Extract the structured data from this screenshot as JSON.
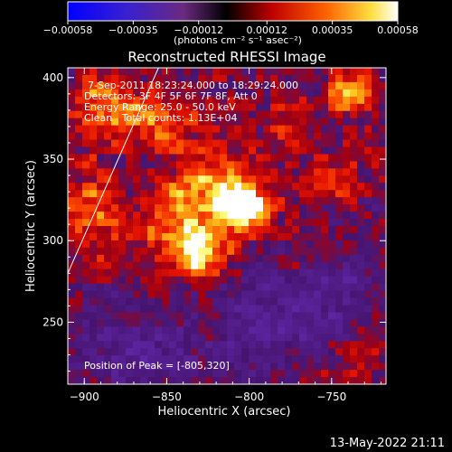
{
  "chart_data": {
    "type": "heatmap",
    "title": "Reconstructed RHESSI Image",
    "xlabel": "Heliocentric X (arcsec)",
    "ylabel": "Heliocentric Y (arcsec)",
    "xlim": [
      -910,
      -717
    ],
    "ylim": [
      212,
      406
    ],
    "x_ticks": [
      -900,
      -850,
      -800,
      -750
    ],
    "y_ticks": [
      250,
      300,
      350,
      400
    ],
    "colorbar": {
      "ticks": [
        "-0.00058",
        "-0.00035",
        "-0.00012",
        "0.00012",
        "0.00035",
        "0.00058"
      ],
      "unit_label": "(photons cm⁻² s⁻¹ asec⁻²)",
      "min": -0.00058,
      "max": 0.00058
    },
    "annotations": {
      "time_range": "7-Sep-2011 18:23:24.000 to 18:29:24.000",
      "detectors": "Detectors: 3F 4F 5F 6F 7F 8F, Att 0",
      "energy": "Energy Range: 25.0 - 50.0 keV",
      "clean": "Clean   Total counts: 1.13E+04",
      "peak": "Position of Peak = [-805,320]"
    },
    "sources": [
      {
        "x": -803,
        "y": 322,
        "sx": 10,
        "sy": 10,
        "amp": 1.0
      },
      {
        "x": -822,
        "y": 330,
        "sx": 18,
        "sy": 16,
        "amp": 0.55
      },
      {
        "x": -830,
        "y": 291,
        "sx": 11,
        "sy": 10,
        "amp": 0.75
      },
      {
        "x": -843,
        "y": 307,
        "sx": 22,
        "sy": 20,
        "amp": 0.45
      },
      {
        "x": -738,
        "y": 390,
        "sx": 9,
        "sy": 9,
        "amp": 0.75
      },
      {
        "x": -893,
        "y": 386,
        "sx": 15,
        "sy": 13,
        "amp": 0.5
      },
      {
        "x": -860,
        "y": 372,
        "sx": 24,
        "sy": 13,
        "amp": 0.45
      },
      {
        "x": -895,
        "y": 318,
        "sx": 12,
        "sy": 20,
        "amp": 0.45
      },
      {
        "x": -778,
        "y": 370,
        "sx": 10,
        "sy": 9,
        "amp": 0.4
      },
      {
        "x": -750,
        "y": 335,
        "sx": 14,
        "sy": 10,
        "amp": 0.3
      },
      {
        "x": -760,
        "y": 292,
        "sx": 12,
        "sy": 9,
        "amp": 0.28
      },
      {
        "x": -790,
        "y": 250,
        "sx": 22,
        "sy": 20,
        "amp": -0.45
      },
      {
        "x": -750,
        "y": 270,
        "sx": 20,
        "sy": 22,
        "amp": -0.35
      },
      {
        "x": -880,
        "y": 240,
        "sx": 24,
        "sy": 20,
        "amp": -0.3
      },
      {
        "x": -850,
        "y": 225,
        "sx": 22,
        "sy": 14,
        "amp": -0.25
      },
      {
        "x": -740,
        "y": 225,
        "sx": 18,
        "sy": 12,
        "amp": 0.2
      }
    ],
    "limb_line": {
      "x": [
        -910,
        -855
      ],
      "y": [
        280,
        406
      ]
    },
    "colors": {
      "background": "#000000",
      "colormap": [
        "#0000ff",
        "#5a2ca8",
        "#6a2a80",
        "#b00000",
        "#ff0000",
        "#ff8000",
        "#ffff40",
        "#ffffff"
      ]
    }
  },
  "footer": {
    "timestamp": "13-May-2022 21:11"
  }
}
